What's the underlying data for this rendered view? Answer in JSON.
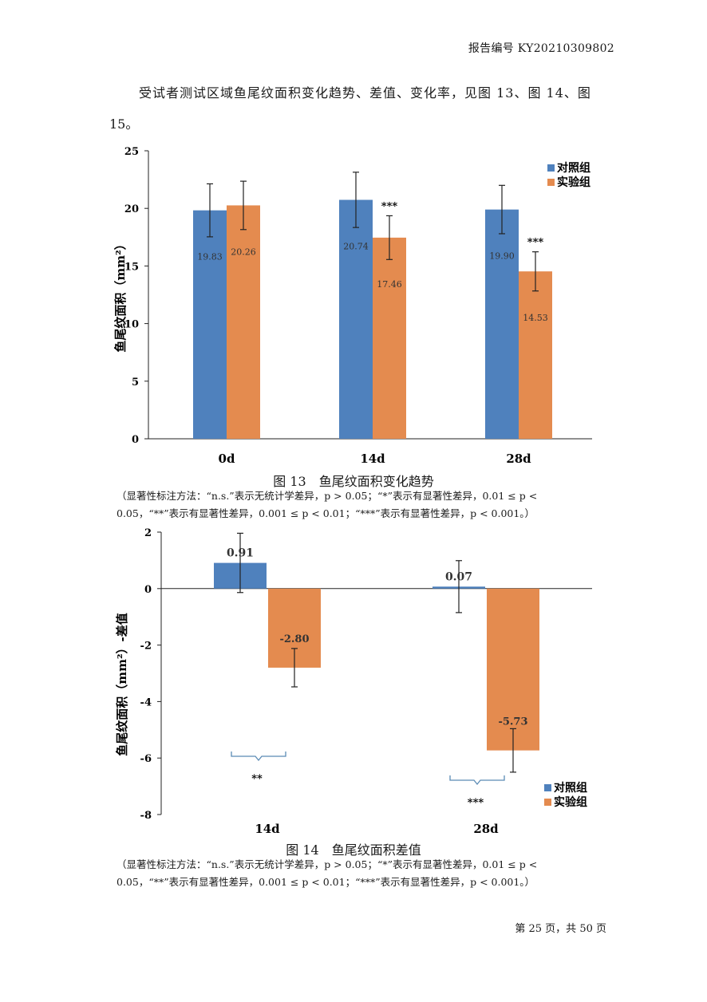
{
  "header": {
    "report_id": "报告编号 KY20210309802"
  },
  "intro": {
    "line1": "受试者测试区域鱼尾纹面积变化趋势、差值、变化率，见图 13、图 14、图",
    "line2": "15。"
  },
  "figures": [
    {
      "caption": "图 13　鱼尾纹面积变化趋势",
      "note_line1": "（显著性标注方法：“n.s.”表示无统计学差异，p > 0.05；“*”表示有显著性差异，0.01 ≤ p <",
      "note_line2": "0.05，“**”表示有显著性差异，0.001 ≤ p < 0.01；“***”表示有显著性差异，p < 0.001。）"
    },
    {
      "caption": "图 14　鱼尾纹面积差值",
      "note_line1": "（显著性标注方法：“n.s.”表示无统计学差异，p > 0.05；“*”表示有显著性差异，0.01 ≤ p <",
      "note_line2": "0.05，“**”表示有显著性差异，0.001 ≤ p < 0.01；“***”表示有显著性差异，p < 0.001。）"
    }
  ],
  "chart_data": [
    {
      "type": "bar",
      "title": "图 13　鱼尾纹面积变化趋势",
      "xlabel": "",
      "ylabel": "鱼尾纹面积（mm²）",
      "categories": [
        "0d",
        "14d",
        "28d"
      ],
      "ylim": [
        0,
        25
      ],
      "yticks": [
        0,
        5,
        10,
        15,
        20,
        25
      ],
      "ytick_labels": [
        "0",
        "5",
        "10",
        "15",
        "20",
        "25"
      ],
      "series": [
        {
          "name": "对照组",
          "color": "#4f81bd",
          "values": [
            19.83,
            20.74,
            19.9
          ],
          "labels": [
            "19.83",
            "20.74",
            "19.90"
          ],
          "errors": [
            2.3,
            2.4,
            2.1
          ]
        },
        {
          "name": "实验组",
          "color": "#e48b4f",
          "values": [
            20.26,
            17.46,
            14.53
          ],
          "labels": [
            "20.26",
            "17.46",
            "14.53"
          ],
          "errors": [
            2.1,
            1.9,
            1.7
          ]
        }
      ],
      "significance": [
        {
          "category": "14d",
          "series": "实验组",
          "label": "***"
        },
        {
          "category": "28d",
          "series": "实验组",
          "label": "***"
        }
      ],
      "legend": "top-right"
    },
    {
      "type": "bar",
      "title": "图 14　鱼尾纹面积差值",
      "xlabel": "",
      "ylabel": "鱼尾纹面积（mm²）-差值",
      "categories": [
        "14d",
        "28d"
      ],
      "ylim": [
        -8,
        2
      ],
      "yticks": [
        2,
        0,
        -2,
        -4,
        -6,
        -8
      ],
      "ytick_labels": [
        "2",
        "0",
        "-2",
        "-4",
        "-6",
        "-8"
      ],
      "series": [
        {
          "name": "对照组",
          "color": "#4f81bd",
          "values": [
            0.91,
            0.07
          ],
          "labels": [
            "0.91",
            "0.07"
          ],
          "errors": [
            1.05,
            0.92
          ]
        },
        {
          "name": "实验组",
          "color": "#e48b4f",
          "values": [
            -2.8,
            -5.73
          ],
          "labels": [
            "-2.80",
            "-5.73"
          ],
          "errors": [
            0.68,
            0.77
          ]
        }
      ],
      "significance": [
        {
          "category": "14d",
          "label": "**"
        },
        {
          "category": "28d",
          "label": "***"
        }
      ],
      "legend": "bottom-right"
    }
  ],
  "footer": {
    "page": "第 25 页，共 50 页"
  }
}
